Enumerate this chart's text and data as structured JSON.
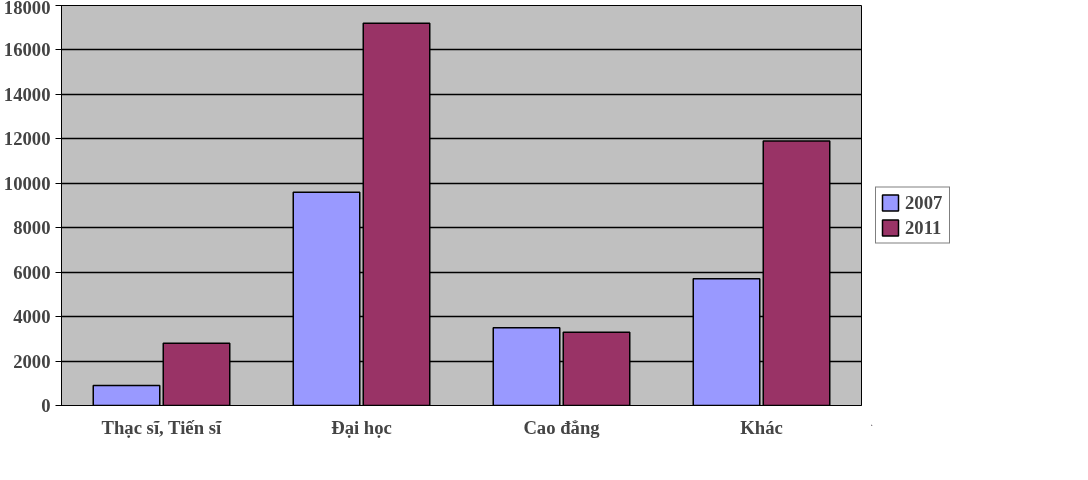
{
  "chart_data": {
    "type": "bar",
    "categories": [
      "Thạc sĩ, Tiến sĩ",
      "Đại học",
      "Cao đẳng",
      "Khác"
    ],
    "series": [
      {
        "name": "2007",
        "color": "#9999ff",
        "values": [
          900,
          9600,
          3500,
          5700
        ]
      },
      {
        "name": "2011",
        "color": "#993366",
        "values": [
          2800,
          17200,
          3300,
          11900
        ]
      }
    ],
    "ylim": [
      0,
      18000
    ],
    "yticks": [
      0,
      2000,
      4000,
      6000,
      8000,
      10000,
      12000,
      14000,
      16000,
      18000
    ],
    "grid": "y",
    "legend": "right"
  }
}
